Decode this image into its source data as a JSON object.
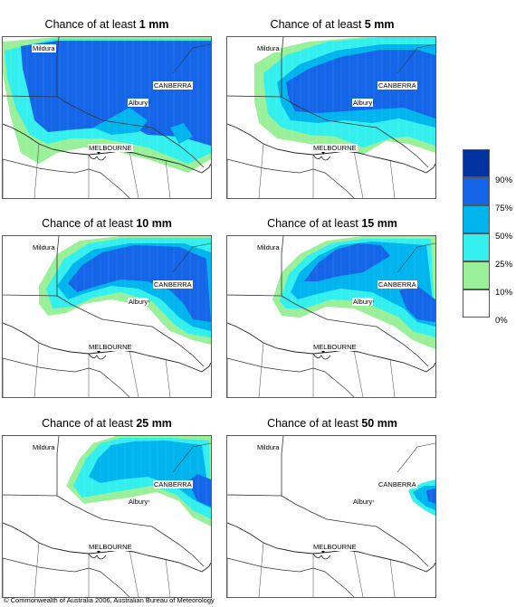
{
  "title_prefix": "Chance of at least ",
  "panels": [
    {
      "amount": "1 mm"
    },
    {
      "amount": "5 mm"
    },
    {
      "amount": "10 mm"
    },
    {
      "amount": "15 mm"
    },
    {
      "amount": "25 mm"
    },
    {
      "amount": "50 mm"
    }
  ],
  "places": {
    "mildura": "Mildura",
    "canberra": "CANBERRA",
    "albury": "Albury",
    "melbourne": "MELBOURNE"
  },
  "legend": {
    "labels": [
      "90%",
      "75%",
      "50%",
      "25%",
      "10%",
      "0%"
    ],
    "colors": [
      "#0033a0",
      "#1565e8",
      "#00b4ee",
      "#33f0ee",
      "#99f099",
      "#ffffff"
    ]
  },
  "footer": "© Commonwealth of Australia 2006, Australian Bureau of Meteorology"
}
